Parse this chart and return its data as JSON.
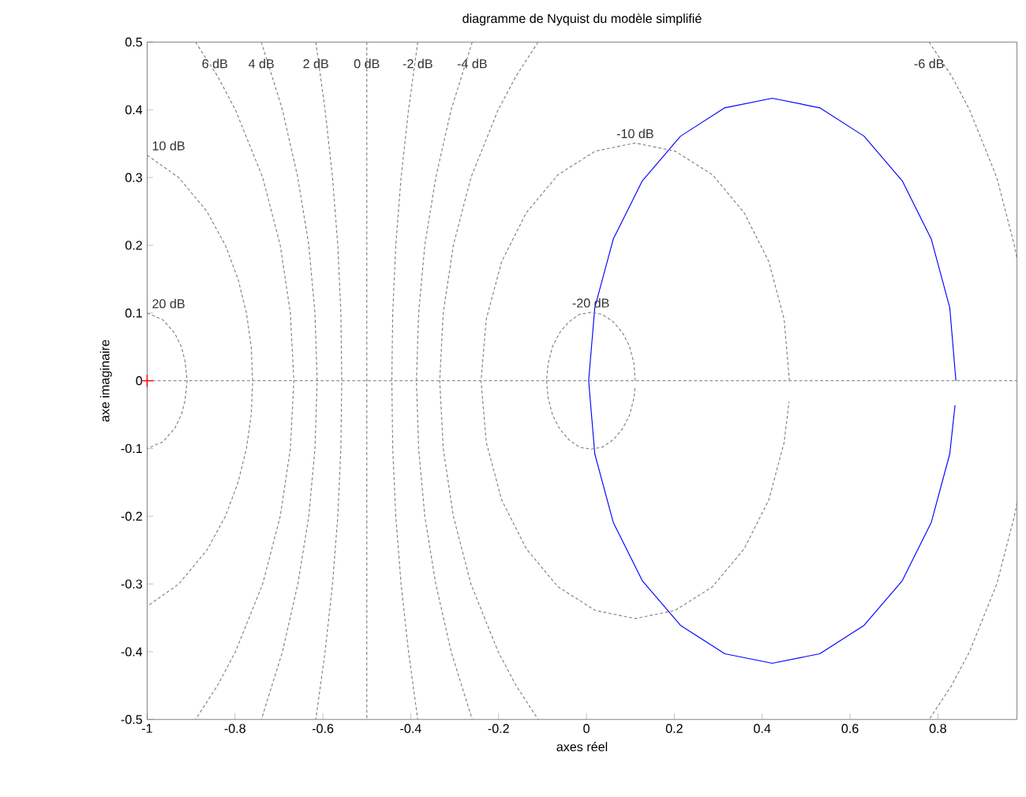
{
  "chart_data": {
    "type": "line",
    "title": "diagramme de Nyquist du modèle simplifié",
    "xlabel": "axes réel",
    "ylabel": "axe imaginaire",
    "xlim": [
      -1,
      0.98
    ],
    "ylim": [
      -0.5,
      0.5
    ],
    "xticks": [
      -1,
      -0.8,
      -0.6,
      -0.4,
      -0.2,
      0,
      0.2,
      0.4,
      0.6,
      0.8
    ],
    "yticks": [
      -0.5,
      -0.4,
      -0.3,
      -0.2,
      -0.1,
      0,
      0.1,
      0.2,
      0.3,
      0.4,
      0.5
    ],
    "grid": false,
    "legend": false,
    "ref_lines": [
      {
        "axis": "y",
        "value": 0,
        "color": "#808080",
        "line_style": "dashed"
      }
    ],
    "series": [
      {
        "color": "#0000ff",
        "line_style": "solid",
        "x": [
          0.841,
          0.827,
          0.785,
          0.719,
          0.632,
          0.531,
          0.423,
          0.315,
          0.214,
          0.127,
          0.061,
          0.019,
          0.005,
          0.019,
          0.061,
          0.127,
          0.214,
          0.315,
          0.423,
          0.531,
          0.632,
          0.719,
          0.785,
          0.827,
          0.839
        ],
        "values": [
          0,
          0.108,
          0.209,
          0.295,
          0.361,
          0.403,
          0.417,
          0.403,
          0.361,
          0.295,
          0.209,
          0.108,
          0,
          -0.108,
          -0.209,
          -0.295,
          -0.361,
          -0.403,
          -0.417,
          -0.403,
          -0.361,
          -0.295,
          -0.209,
          -0.108,
          -0.036
        ]
      },
      {
        "name": "20 dB",
        "color": "#808080",
        "line_style": "dashed",
        "x": [
          -1,
          -0.964,
          -0.937,
          -0.922,
          -0.914,
          -0.909,
          -0.914,
          -0.922,
          -0.937,
          -0.964,
          -1
        ],
        "values": [
          0.1,
          0.09,
          0.07,
          0.05,
          0.03,
          0,
          -0.03,
          -0.05,
          -0.07,
          -0.09,
          -0.1
        ]
      },
      {
        "name": "10 dB",
        "color": "#808080",
        "line_style": "dashed",
        "x": [
          -1,
          -0.928,
          -0.864,
          -0.822,
          -0.793,
          -0.774,
          -0.763,
          -0.76,
          -0.763,
          -0.774,
          -0.793,
          -0.822,
          -0.864,
          -0.928,
          -1
        ],
        "values": [
          0.333,
          0.3,
          0.25,
          0.2,
          0.15,
          0.1,
          0.05,
          0,
          -0.05,
          -0.1,
          -0.15,
          -0.2,
          -0.25,
          -0.3,
          -0.333
        ]
      },
      {
        "name": "6 dB",
        "color": "#808080",
        "line_style": "dashed",
        "x": [
          -0.89,
          -0.84,
          -0.799,
          -0.737,
          -0.697,
          -0.674,
          -0.666,
          -0.674,
          -0.697,
          -0.737,
          -0.799,
          -0.84,
          -0.89
        ],
        "values": [
          0.5,
          0.45,
          0.4,
          0.3,
          0.2,
          0.1,
          0,
          -0.1,
          -0.2,
          -0.3,
          -0.4,
          -0.45,
          -0.5
        ]
      },
      {
        "name": "4 dB",
        "color": "#808080",
        "line_style": "dashed",
        "x": [
          -0.74,
          -0.692,
          -0.657,
          -0.632,
          -0.618,
          -0.613,
          -0.618,
          -0.632,
          -0.657,
          -0.692,
          -0.74
        ],
        "values": [
          0.5,
          0.4,
          0.3,
          0.2,
          0.1,
          0,
          -0.1,
          -0.2,
          -0.3,
          -0.4,
          -0.5
        ]
      },
      {
        "name": "2 dB",
        "color": "#808080",
        "line_style": "dashed",
        "x": [
          -0.616,
          -0.595,
          -0.578,
          -0.566,
          -0.559,
          -0.557,
          -0.559,
          -0.566,
          -0.578,
          -0.595,
          -0.616
        ],
        "values": [
          0.5,
          0.4,
          0.3,
          0.2,
          0.1,
          0,
          -0.1,
          -0.2,
          -0.3,
          -0.4,
          -0.5
        ]
      },
      {
        "name": "0 dB",
        "color": "#808080",
        "line_style": "dashed",
        "x": [
          -0.5,
          -0.5,
          -0.5
        ],
        "values": [
          0.5,
          0,
          -0.5
        ]
      },
      {
        "name": "-2 dB",
        "color": "#808080",
        "line_style": "dashed",
        "x": [
          -0.384,
          -0.405,
          -0.422,
          -0.434,
          -0.441,
          -0.443,
          -0.441,
          -0.434,
          -0.422,
          -0.405,
          -0.384
        ],
        "values": [
          0.5,
          0.4,
          0.3,
          0.2,
          0.1,
          0,
          -0.1,
          -0.2,
          -0.3,
          -0.4,
          -0.5
        ]
      },
      {
        "name": "-4 dB",
        "color": "#808080",
        "line_style": "dashed",
        "x": [
          -0.26,
          -0.308,
          -0.343,
          -0.368,
          -0.382,
          -0.387,
          -0.382,
          -0.368,
          -0.343,
          -0.308,
          -0.26
        ],
        "values": [
          0.5,
          0.4,
          0.3,
          0.2,
          0.1,
          0,
          -0.1,
          -0.2,
          -0.3,
          -0.4,
          -0.5
        ]
      },
      {
        "name": "-6 dB",
        "color": "#808080",
        "line_style": "dashed",
        "x": [
          -0.11,
          -0.16,
          -0.201,
          -0.263,
          -0.303,
          -0.326,
          -0.334,
          -0.326,
          -0.303,
          -0.263,
          -0.201,
          -0.16,
          -0.11,
          null,
          0.78,
          0.831,
          0.872,
          0.934,
          0.974,
          0.98,
          null,
          0.98,
          0.974,
          0.934,
          0.872,
          0.831,
          0.78
        ],
        "values": [
          0.5,
          0.45,
          0.4,
          0.3,
          0.2,
          0.1,
          0,
          -0.1,
          -0.2,
          -0.3,
          -0.4,
          -0.45,
          -0.5,
          null,
          0.5,
          0.45,
          0.4,
          0.3,
          0.2,
          0.18,
          null,
          -0.18,
          -0.2,
          -0.3,
          -0.4,
          -0.45,
          -0.5
        ]
      },
      {
        "name": "-10 dB",
        "color": "#808080",
        "line_style": "dashed",
        "x": [
          0.462,
          0.45,
          0.415,
          0.359,
          0.287,
          0.202,
          0.111,
          0.02,
          -0.065,
          -0.137,
          -0.193,
          -0.228,
          -0.24,
          -0.228,
          -0.193,
          -0.137,
          -0.065,
          0.02,
          0.111,
          0.202,
          0.287,
          0.359,
          0.415,
          0.45,
          0.461
        ],
        "values": [
          0,
          0.091,
          0.176,
          0.248,
          0.304,
          0.339,
          0.351,
          0.339,
          0.304,
          0.248,
          0.176,
          0.091,
          0,
          -0.091,
          -0.176,
          -0.248,
          -0.304,
          -0.339,
          -0.351,
          -0.339,
          -0.304,
          -0.248,
          -0.176,
          -0.091,
          -0.031
        ]
      },
      {
        "name": "-20 dB",
        "color": "#808080",
        "line_style": "dashed",
        "x": [
          0.111,
          0.108,
          0.098,
          0.082,
          0.061,
          0.036,
          0.01,
          -0.016,
          -0.04,
          -0.061,
          -0.077,
          -0.087,
          -0.091,
          -0.087,
          -0.077,
          -0.061,
          -0.04,
          -0.016,
          0.01,
          0.036,
          0.061,
          0.082,
          0.098,
          0.108,
          0.111
        ],
        "values": [
          0,
          0.026,
          0.051,
          0.071,
          0.087,
          0.098,
          0.101,
          0.098,
          0.087,
          0.071,
          0.051,
          0.026,
          0,
          -0.026,
          -0.051,
          -0.071,
          -0.087,
          -0.098,
          -0.101,
          -0.098,
          -0.087,
          -0.071,
          -0.051,
          -0.026,
          -0.009
        ]
      },
      {
        "type": "scatter",
        "color": "#ff0000",
        "marker": "cross",
        "x": [
          -1
        ],
        "values": [
          0
        ]
      }
    ]
  }
}
